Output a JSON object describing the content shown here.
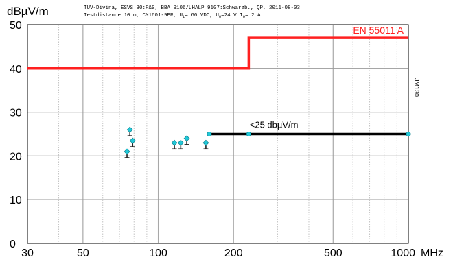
{
  "header": {
    "line1": "TÜV-Divina, ESVS 30:R&S, BBA 9106/UHALP 9107:Schwarzb., QP, 2011-08-03",
    "line2_prefix": "Testdistance 10 m, CM1601-9ER, U",
    "line2_sub1": "i",
    "line2_mid1": "= 60 VDC, U",
    "line2_sub2": "O",
    "line2_mid2": "=24 V I",
    "line2_sub3": "O",
    "line2_suffix": "= 2 A"
  },
  "chart_data": {
    "type": "line",
    "ylabel": "dBµV/m",
    "xunit": "MHz",
    "xscale": "log",
    "xlim": [
      30,
      1000
    ],
    "ylim": [
      0,
      50
    ],
    "x_ticks": [
      {
        "value": 30,
        "label": "30"
      },
      {
        "value": 50,
        "label": "50"
      },
      {
        "value": 100,
        "label": "100"
      },
      {
        "value": 200,
        "label": "200"
      },
      {
        "value": 500,
        "label": "500"
      },
      {
        "value": 1000,
        "label": "1000"
      }
    ],
    "y_ticks": [
      0,
      10,
      20,
      30,
      40,
      50
    ],
    "grid": true,
    "limit_line": {
      "label": "EN 55011 A",
      "color": "#ff2020",
      "points": [
        [
          30,
          40
        ],
        [
          230,
          40
        ],
        [
          230,
          47
        ],
        [
          1000,
          47
        ]
      ]
    },
    "target_line": {
      "label": "<25 dbµV/m",
      "color": "#000000",
      "points": [
        [
          160,
          25
        ],
        [
          1000,
          25
        ]
      ],
      "markers_x": [
        160,
        230,
        1000
      ]
    },
    "measurements": {
      "marker_color": "#22c8d8",
      "points": [
        {
          "x": 75,
          "y": 21
        },
        {
          "x": 77,
          "y": 26
        },
        {
          "x": 79,
          "y": 23.5
        },
        {
          "x": 116,
          "y": 23
        },
        {
          "x": 123,
          "y": 23
        },
        {
          "x": 130,
          "y": 24
        },
        {
          "x": 155,
          "y": 23
        }
      ]
    },
    "side_annotation": "JM130"
  }
}
